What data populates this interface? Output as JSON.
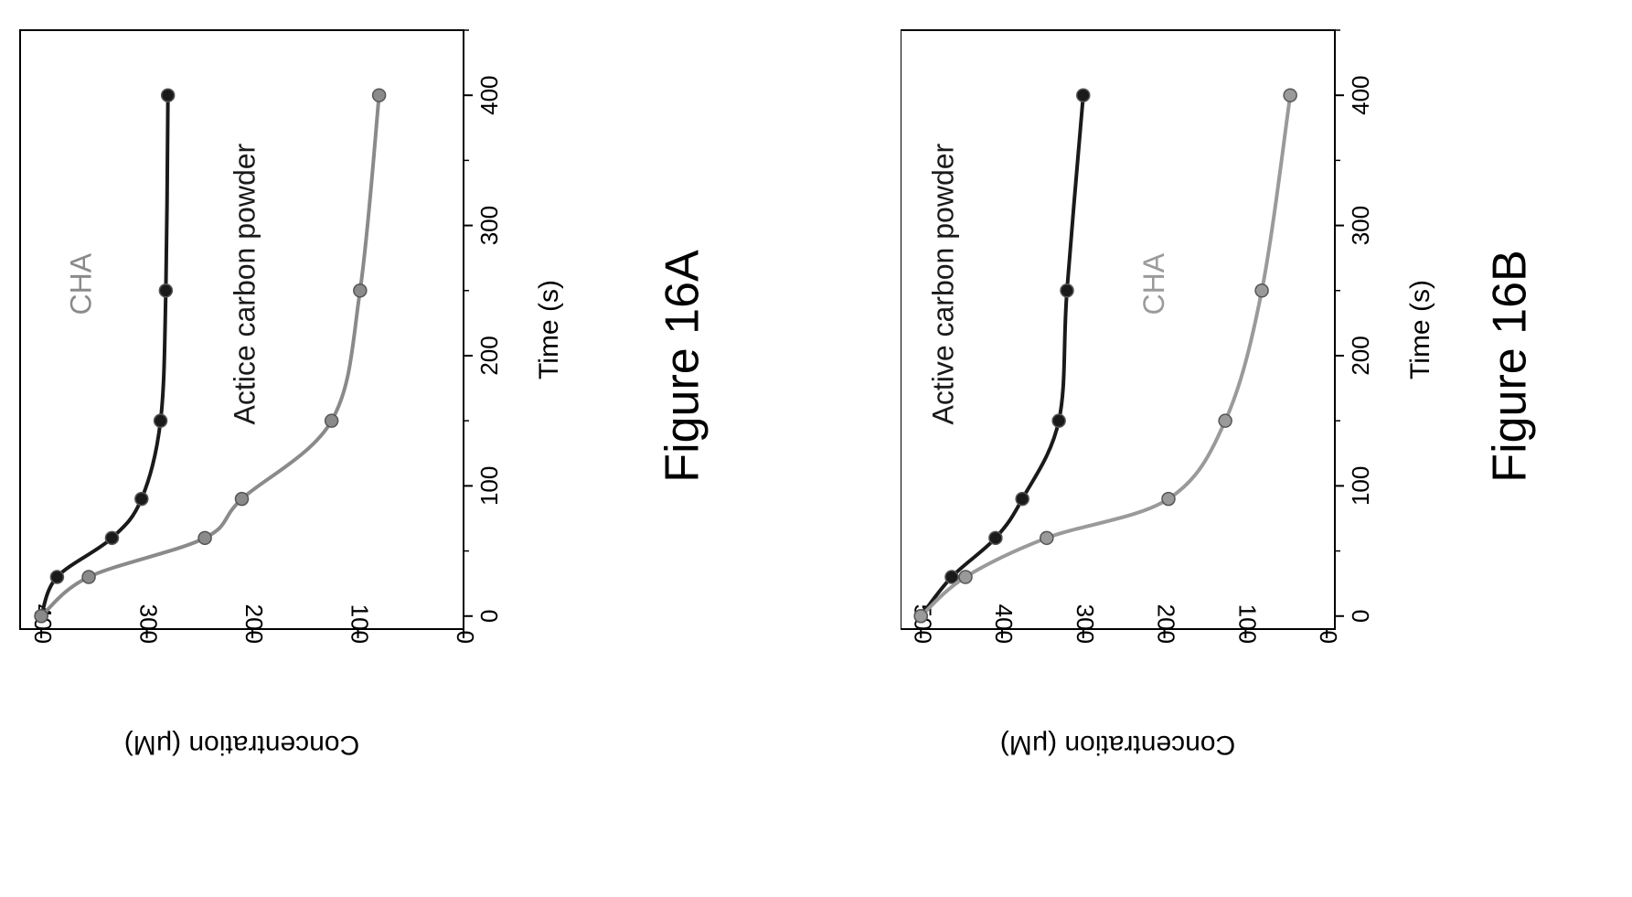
{
  "figures": [
    {
      "caption": "Figure 16A",
      "chart_data": {
        "type": "line",
        "xlabel": "Time (s)",
        "ylabel": "Concentration (μM)",
        "xlim": [
          -10,
          450
        ],
        "ylim": [
          0,
          420
        ],
        "xticks": [
          "0",
          "100",
          "200",
          "300",
          "400"
        ],
        "yticks": [
          "0",
          "100",
          "200",
          "300",
          "400"
        ],
        "xtick_values": [
          0,
          100,
          200,
          300,
          400
        ],
        "ytick_values": [
          0,
          100,
          200,
          300,
          400
        ],
        "grid": false,
        "series": [
          {
            "name": "Actice carbon powder",
            "color": "#1a1a1a",
            "x": [
              0,
              30,
              60,
              90,
              150,
              250,
              400
            ],
            "y": [
              400,
              385,
              333,
              305,
              287,
              282,
              280
            ]
          },
          {
            "name": "CHA",
            "color": "#8a8a8a",
            "x": [
              0,
              30,
              60,
              90,
              150,
              250,
              400
            ],
            "y": [
              400,
              355,
              245,
              210,
              125,
              98,
              80
            ]
          }
        ]
      }
    },
    {
      "caption": "Figure 16B",
      "chart_data": {
        "type": "line",
        "xlabel": "Time (s)",
        "ylabel": "Concentration (μM)",
        "xlim": [
          -10,
          450
        ],
        "ylim": [
          -10,
          525
        ],
        "xticks": [
          "0",
          "100",
          "200",
          "300",
          "400"
        ],
        "yticks": [
          "0",
          "100",
          "200",
          "300",
          "400",
          "500"
        ],
        "xtick_values": [
          0,
          100,
          200,
          300,
          400
        ],
        "ytick_values": [
          0,
          100,
          200,
          300,
          400,
          500
        ],
        "grid": false,
        "series": [
          {
            "name": "Active carbon powder",
            "color": "#1a1a1a",
            "x": [
              0,
              30,
              60,
              90,
              150,
              250,
              400
            ],
            "y": [
              500,
              462,
              408,
              375,
              330,
              320,
              300
            ]
          },
          {
            "name": "CHA",
            "color": "#9a9a9a",
            "x": [
              0,
              30,
              60,
              90,
              150,
              250,
              400
            ],
            "y": [
              500,
              445,
              345,
              195,
              125,
              80,
              45
            ]
          }
        ]
      }
    }
  ]
}
